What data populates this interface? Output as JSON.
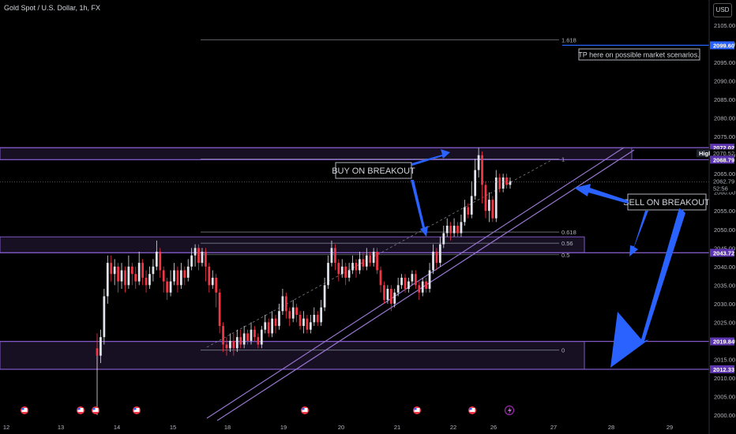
{
  "header": {
    "symbol": "Gold Spot / U.S. Dollar, 1h, FX",
    "currency": "USD"
  },
  "colors": {
    "up": "#e0e3eb",
    "down": "#f23645",
    "zone": "#7e57c2",
    "channel": "#9575cd",
    "arrow": "#2962ff",
    "fib": "#787b86",
    "price_tag_bg": "#2962ff"
  },
  "chart_data": {
    "type": "candlestick",
    "timeframe": "1h",
    "ylim": [
      2000,
      2110
    ],
    "y_ticks": [
      2000,
      2005,
      2010,
      2015,
      2020,
      2025,
      2030,
      2035,
      2040,
      2045,
      2050,
      2055,
      2060,
      2065,
      2070,
      2075,
      2080,
      2085,
      2090,
      2095,
      2100,
      2105
    ],
    "x_ticks": [
      "12",
      "13",
      "14",
      "15",
      "18",
      "19",
      "20",
      "21",
      "22",
      "26",
      "27",
      "28",
      "29"
    ],
    "price_tags": [
      {
        "value": 2099.6,
        "label": "2099.60"
      },
      {
        "value": 2072.02,
        "label": "2072.02"
      },
      {
        "value": 2070.52,
        "label": "2070.52",
        "badge": "High"
      },
      {
        "value": 2068.79,
        "label": "2068.79"
      },
      {
        "value": 2062.79,
        "label": "2062.79",
        "sub": "52:56"
      },
      {
        "value": 2043.72,
        "label": "2043.72"
      },
      {
        "value": 2019.84,
        "label": "2019.84"
      },
      {
        "value": 2012.33,
        "label": "2012.33"
      }
    ],
    "fib_levels": [
      {
        "label": "1.618",
        "value": 2101.1
      },
      {
        "label": "1",
        "value": 2069.0
      },
      {
        "label": "0.618",
        "value": 2049.3
      },
      {
        "label": "0.56",
        "value": 2046.3
      },
      {
        "label": "0.5",
        "value": 2043.2
      },
      {
        "label": "0",
        "value": 2017.5
      }
    ],
    "zones": [
      {
        "from": 2068.79,
        "to": 2072.02
      },
      {
        "from": 2043.72,
        "to": 2048.0
      },
      {
        "from": 2012.33,
        "to": 2019.84
      }
    ],
    "annotations": [
      {
        "text": "BUY ON BREAKOUT"
      },
      {
        "text": "SELL ON BREAKOUT"
      },
      {
        "text": "TP here on possible market scenarios."
      }
    ],
    "candles": [
      [
        2018,
        2016,
        2022,
        2012
      ],
      [
        2016,
        2021,
        2023,
        2014
      ],
      [
        2021,
        2032,
        2034,
        2019
      ],
      [
        2032,
        2041,
        2043,
        2030
      ],
      [
        2041,
        2038,
        2043,
        2036
      ],
      [
        2038,
        2040,
        2042,
        2035
      ],
      [
        2040,
        2036,
        2041,
        2033
      ],
      [
        2036,
        2039,
        2041,
        2034
      ],
      [
        2039,
        2035,
        2040,
        2033
      ],
      [
        2035,
        2040,
        2043,
        2034
      ],
      [
        2040,
        2038,
        2041,
        2035
      ],
      [
        2038,
        2036,
        2040,
        2034
      ],
      [
        2036,
        2041,
        2044,
        2035
      ],
      [
        2041,
        2037,
        2042,
        2035
      ],
      [
        2037,
        2035,
        2039,
        2033
      ],
      [
        2035,
        2038,
        2040,
        2034
      ],
      [
        2038,
        2040,
        2042,
        2036
      ],
      [
        2040,
        2044,
        2047,
        2039
      ],
      [
        2044,
        2039,
        2045,
        2037
      ],
      [
        2039,
        2036,
        2040,
        2033
      ],
      [
        2036,
        2033,
        2037,
        2031
      ],
      [
        2033,
        2036,
        2039,
        2032
      ],
      [
        2036,
        2039,
        2041,
        2035
      ],
      [
        2039,
        2035,
        2040,
        2033
      ],
      [
        2035,
        2039,
        2041,
        2034
      ],
      [
        2039,
        2037,
        2040,
        2035
      ],
      [
        2037,
        2040,
        2042,
        2036
      ],
      [
        2040,
        2043,
        2045,
        2039
      ],
      [
        2043,
        2045,
        2046,
        2040
      ],
      [
        2045,
        2041,
        2046,
        2039
      ],
      [
        2041,
        2044,
        2045,
        2040
      ],
      [
        2044,
        2040,
        2045,
        2036
      ],
      [
        2040,
        2035,
        2041,
        2033
      ],
      [
        2035,
        2037,
        2039,
        2034
      ],
      [
        2037,
        2033,
        2038,
        2029
      ],
      [
        2033,
        2024,
        2034,
        2022
      ],
      [
        2024,
        2019,
        2025,
        2017
      ],
      [
        2019,
        2018,
        2021,
        2016
      ],
      [
        2018,
        2020,
        2022,
        2017
      ],
      [
        2020,
        2018,
        2022,
        2016
      ],
      [
        2018,
        2021,
        2023,
        2017
      ],
      [
        2021,
        2019,
        2023,
        2018
      ],
      [
        2019,
        2022,
        2024,
        2018
      ],
      [
        2022,
        2020,
        2023,
        2019
      ],
      [
        2020,
        2023,
        2025,
        2019
      ],
      [
        2023,
        2021,
        2024,
        2020
      ],
      [
        2021,
        2019,
        2022,
        2018
      ],
      [
        2019,
        2023,
        2024,
        2018
      ],
      [
        2023,
        2025,
        2027,
        2022
      ],
      [
        2025,
        2022,
        2026,
        2021
      ],
      [
        2022,
        2026,
        2028,
        2021
      ],
      [
        2026,
        2024,
        2027,
        2022
      ],
      [
        2024,
        2028,
        2030,
        2023
      ],
      [
        2028,
        2032,
        2034,
        2027
      ],
      [
        2032,
        2028,
        2033,
        2026
      ],
      [
        2028,
        2026,
        2029,
        2024
      ],
      [
        2026,
        2029,
        2031,
        2025
      ],
      [
        2029,
        2027,
        2030,
        2025
      ],
      [
        2027,
        2024,
        2028,
        2023
      ],
      [
        2024,
        2026,
        2028,
        2022
      ],
      [
        2026,
        2023,
        2027,
        2022
      ],
      [
        2023,
        2025,
        2027,
        2022
      ],
      [
        2025,
        2027,
        2029,
        2024
      ],
      [
        2027,
        2025,
        2028,
        2024
      ],
      [
        2025,
        2029,
        2031,
        2024
      ],
      [
        2029,
        2035,
        2037,
        2028
      ],
      [
        2035,
        2041,
        2043,
        2034
      ],
      [
        2041,
        2045,
        2047,
        2040
      ],
      [
        2045,
        2041,
        2046,
        2039
      ],
      [
        2041,
        2038,
        2042,
        2036
      ],
      [
        2038,
        2040,
        2042,
        2037
      ],
      [
        2040,
        2037,
        2041,
        2035
      ],
      [
        2037,
        2039,
        2041,
        2036
      ],
      [
        2039,
        2041,
        2043,
        2038
      ],
      [
        2041,
        2039,
        2042,
        2037
      ],
      [
        2039,
        2042,
        2044,
        2038
      ],
      [
        2042,
        2040,
        2044,
        2039
      ],
      [
        2040,
        2043,
        2045,
        2039
      ],
      [
        2043,
        2041,
        2044,
        2040
      ],
      [
        2041,
        2044,
        2045,
        2040
      ],
      [
        2044,
        2039,
        2045,
        2038
      ],
      [
        2039,
        2035,
        2040,
        2033
      ],
      [
        2035,
        2031,
        2036,
        2030
      ],
      [
        2031,
        2034,
        2035,
        2030
      ],
      [
        2034,
        2030,
        2035,
        2028
      ],
      [
        2030,
        2033,
        2034,
        2029
      ],
      [
        2033,
        2035,
        2037,
        2032
      ],
      [
        2035,
        2037,
        2038,
        2034
      ],
      [
        2037,
        2034,
        2038,
        2033
      ],
      [
        2034,
        2036,
        2037,
        2033
      ],
      [
        2036,
        2038,
        2039,
        2035
      ],
      [
        2038,
        2035,
        2039,
        2034
      ],
      [
        2035,
        2033,
        2036,
        2031
      ],
      [
        2033,
        2036,
        2037,
        2032
      ],
      [
        2036,
        2034,
        2037,
        2033
      ],
      [
        2034,
        2039,
        2041,
        2033
      ],
      [
        2039,
        2044,
        2046,
        2038
      ],
      [
        2044,
        2041,
        2045,
        2039
      ],
      [
        2041,
        2046,
        2048,
        2040
      ],
      [
        2046,
        2049,
        2051,
        2045
      ],
      [
        2049,
        2051,
        2053,
        2048
      ],
      [
        2051,
        2049,
        2052,
        2047
      ],
      [
        2049,
        2051,
        2053,
        2048
      ],
      [
        2051,
        2049,
        2052,
        2048
      ],
      [
        2049,
        2052,
        2054,
        2048
      ],
      [
        2052,
        2056,
        2058,
        2051
      ],
      [
        2056,
        2054,
        2057,
        2053
      ],
      [
        2054,
        2059,
        2063,
        2053
      ],
      [
        2059,
        2066,
        2069,
        2058
      ],
      [
        2066,
        2070,
        2072,
        2064
      ],
      [
        2070,
        2062,
        2071,
        2057
      ],
      [
        2062,
        2055,
        2063,
        2053
      ],
      [
        2055,
        2058,
        2060,
        2052
      ],
      [
        2058,
        2053,
        2059,
        2052
      ],
      [
        2053,
        2064,
        2066,
        2052
      ],
      [
        2064,
        2061,
        2065,
        2060
      ],
      [
        2061,
        2064,
        2065,
        2060
      ],
      [
        2064,
        2062,
        2065,
        2061
      ],
      [
        2062,
        2063,
        2064,
        2061
      ]
    ]
  }
}
